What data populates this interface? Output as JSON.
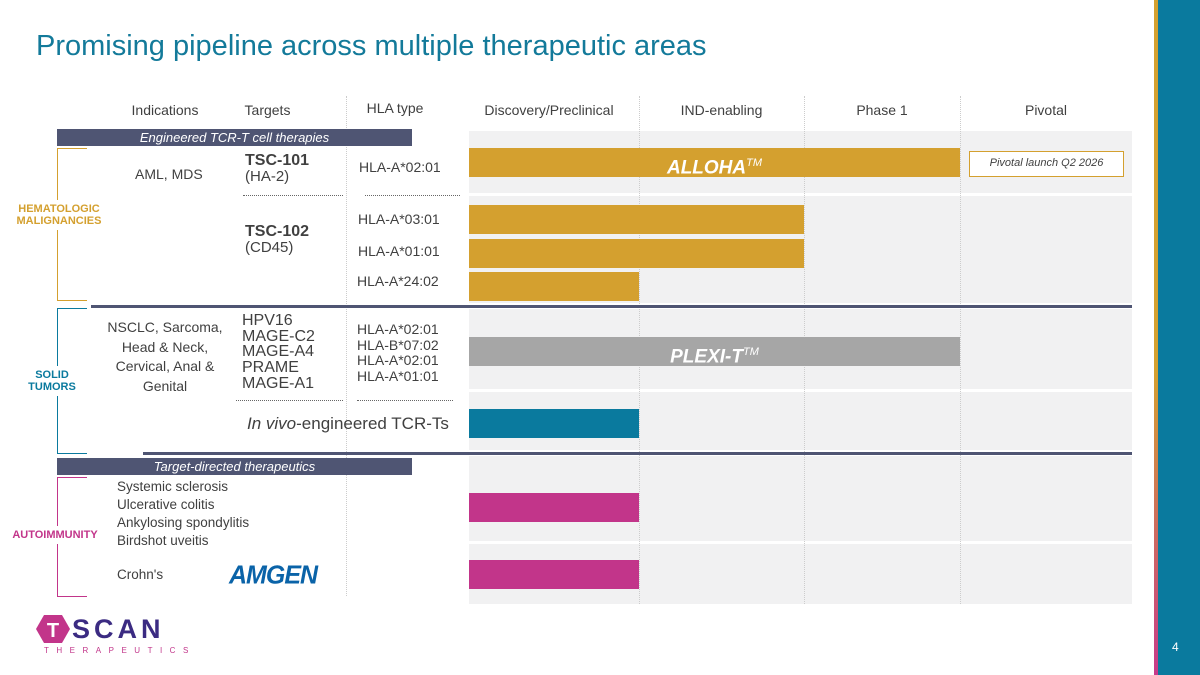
{
  "title": "Promising pipeline across multiple therapeutic areas",
  "headers": {
    "indications": "Indications",
    "targets": "Targets",
    "hla": "HLA type",
    "stages": [
      "Discovery/Preclinical",
      "IND-enabling",
      "Phase 1",
      "Pivotal"
    ]
  },
  "bands": {
    "tcr": "Engineered TCR-T cell therapies",
    "target": "Target-directed therapeutics"
  },
  "categories": {
    "heme": "HEMATOLOGIC MALIGNANCIES",
    "solid": "SOLID TUMORS",
    "auto": "AUTOIMMUNITY"
  },
  "colors": {
    "heme": "#d4a02f",
    "solid": "#0a7a9e",
    "auto": "#c2358a",
    "plexi": "#a6a6a6",
    "band": "#4f5573"
  },
  "rows": {
    "tsc101": {
      "indication": "AML, MDS",
      "target": "TSC-101",
      "target_sub": "(HA-2)",
      "hla": "HLA-A*02:01",
      "platform": "ALLOHA",
      "tm": "TM",
      "note": "Pivotal launch Q2 2026"
    },
    "tsc102": {
      "target": "TSC-102",
      "target_sub": "(CD45)",
      "hla": [
        "HLA-A*03:01",
        "HLA-A*01:01",
        "HLA-A*24:02"
      ]
    },
    "solid": {
      "indication": [
        "NSCLC, Sarcoma,",
        "Head & Neck,",
        "Cervical, Anal &",
        "Genital"
      ],
      "targets": [
        "HPV16",
        "MAGE-C2",
        "MAGE-A4",
        "PRAME",
        "MAGE-A1"
      ],
      "hla": [
        "HLA-A*02:01",
        "HLA-B*07:02",
        "HLA-A*02:01",
        "HLA-A*01:01"
      ],
      "platform": "PLEXI-T",
      "tm": "TM"
    },
    "invivo": {
      "label_italic": "In vivo",
      "label_rest": "-engineered TCR-Ts"
    },
    "auto": {
      "indications": [
        "Systemic sclerosis",
        "Ulcerative colitis",
        "Ankylosing spondylitis",
        "Birdshot uveitis"
      ],
      "crohns": "Crohn's",
      "partner": "AMGEN"
    }
  },
  "progress_stages": {
    "alloha": 3,
    "tsc102_a0301": 2,
    "tsc102_a0101": 2,
    "tsc102_a2402": 1,
    "plexi": 3,
    "invivo": 1,
    "auto1": 1,
    "auto2": 1
  },
  "logo": {
    "name": "TSCAN",
    "sub": "THERAPEUTICS",
    "letter": "T"
  },
  "page_number": "4"
}
